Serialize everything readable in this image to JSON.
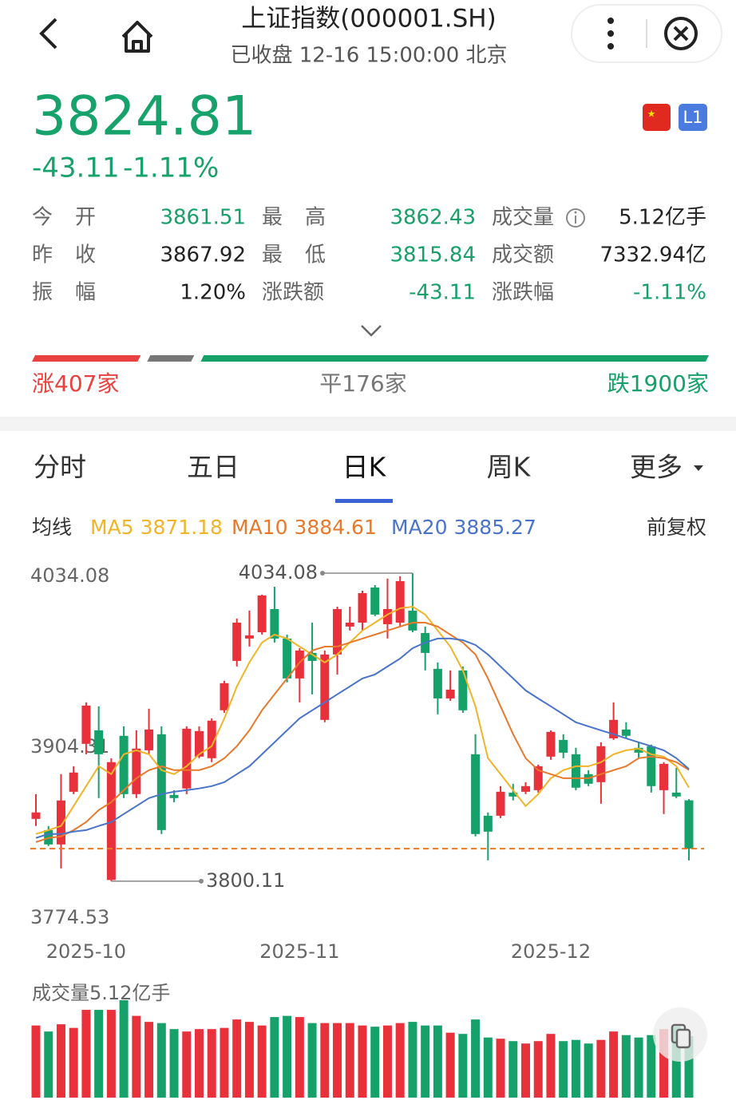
{
  "header": {
    "title": "上证指数(000001.SH)",
    "subtitle": "已收盘 12-16 15:00:00 北京",
    "badge": "L1"
  },
  "quote": {
    "price": "3824.81",
    "change": "-43.11",
    "change_pct": "-1.11%"
  },
  "stats": [
    {
      "label": "今开",
      "value": "3861.51",
      "tone": "down"
    },
    {
      "label": "最高",
      "value": "3862.43",
      "tone": "down"
    },
    {
      "label": "成交量",
      "value": "5.12亿手",
      "tone": "flat"
    },
    {
      "label": "昨收",
      "value": "3867.92",
      "tone": "flat"
    },
    {
      "label": "最低",
      "value": "3815.84",
      "tone": "down"
    },
    {
      "label": "成交额",
      "value": "7332.94亿",
      "tone": "flat"
    },
    {
      "label": "振幅",
      "value": "1.20%",
      "tone": "flat"
    },
    {
      "label": "涨跌额",
      "value": "-43.11",
      "tone": "down"
    },
    {
      "label": "涨跌幅",
      "value": "-1.11%",
      "tone": "down"
    }
  ],
  "breadth": {
    "up": {
      "label": "涨407家",
      "count": 407,
      "color": "#e8413f"
    },
    "flat": {
      "label": "平176家",
      "count": 176,
      "color": "#777777"
    },
    "down": {
      "label": "跌1900家",
      "count": 1900,
      "color": "#16a06a"
    }
  },
  "tabs": [
    "分时",
    "五日",
    "日K",
    "周K",
    "更多"
  ],
  "active_tab": 2,
  "ma_legend": {
    "title": "均线",
    "right": "前复权"
  },
  "chart_data": {
    "type": "candlestick",
    "up_color": "#e8313a",
    "down_color": "#16a06a",
    "categories": [
      null,
      null,
      null,
      null,
      "2025-10",
      null,
      null,
      null,
      null,
      null,
      null,
      null,
      null,
      null,
      null,
      null,
      null,
      null,
      null,
      null,
      null,
      "2025-11",
      null,
      null,
      null,
      null,
      null,
      null,
      null,
      null,
      null,
      null,
      null,
      null,
      null,
      null,
      null,
      null,
      null,
      null,
      null,
      "2025-12",
      null,
      null,
      null,
      null,
      null,
      null,
      null,
      null,
      null,
      null,
      null
    ],
    "open": [
      3847.4,
      3838.9,
      3828.0,
      3868.0,
      3904.4,
      3914.7,
      3801.0,
      3910.5,
      3866.2,
      3899.5,
      3911.7,
      3865.6,
      3870.5,
      3894.7,
      3893.5,
      3929.9,
      3967.4,
      3984.4,
      3989.2,
      4006.8,
      3984.4,
      3954.1,
      3973.5,
      3922.6,
      3972.3,
      3993.5,
      3996.5,
      4023.2,
      3995.3,
      3996.5,
      4005.6,
      3988.6,
      3961.4,
      3938.9,
      3960.2,
      3896.5,
      3849.8,
      3849.8,
      3867.4,
      3868.0,
      3869.2,
      3894.7,
      3907.4,
      3896.5,
      3881.4,
      3875.3,
      3908.6,
      3915.3,
      3901.4,
      3902.6,
      3869.2,
      3867.4,
      3861.51
    ],
    "high": [
      3866.2,
      3842.0,
      3881.4,
      3887.4,
      3935.9,
      3932.9,
      3893.5,
      3917.7,
      3914.7,
      3931.1,
      3917.7,
      3869.2,
      3917.7,
      3917.7,
      3923.8,
      3952.3,
      3999.6,
      4005.6,
      4017.7,
      4023.8,
      3987.4,
      3977.1,
      3996.5,
      3975.3,
      4008.6,
      4008.6,
      4020.8,
      4025.0,
      4029.9,
      4031.7,
      4034.08,
      3993.5,
      3966.2,
      3960.2,
      3963.2,
      3911.7,
      3852.3,
      3872.3,
      3874.1,
      3875.3,
      3888.6,
      3914.7,
      3911.7,
      3901.4,
      3884.4,
      3905.6,
      3935.9,
      3920.8,
      3905.6,
      3903.8,
      3890.5,
      3886.2,
      3862.43
    ],
    "low": [
      3842.0,
      3826.8,
      3809.8,
      3866.2,
      3896.5,
      3863.2,
      3800.11,
      3863.2,
      3863.2,
      3896.5,
      3835.9,
      3860.1,
      3866.2,
      3893.5,
      3890.5,
      3928.0,
      3963.2,
      3978.3,
      3987.4,
      3981.4,
      3951.1,
      3935.9,
      3942.0,
      3920.8,
      3957.1,
      3990.5,
      3990.5,
      4001.4,
      3984.4,
      3993.5,
      3989.2,
      3960.2,
      3926.8,
      3937.1,
      3928.0,
      3834.1,
      3815.9,
      3848.0,
      3861.4,
      3866.2,
      3867.4,
      3892.3,
      3893.5,
      3869.2,
      3872.3,
      3858.9,
      3907.4,
      3908.6,
      3893.5,
      3867.4,
      3851.1,
      3863.2,
      3815.84
    ],
    "close": [
      3852.3,
      3828.0,
      3861.4,
      3882.6,
      3933.5,
      3896.5,
      3890.5,
      3866.2,
      3900.8,
      3915.3,
      3838.9,
      3863.2,
      3915.9,
      3914.1,
      3922.0,
      3950.5,
      3996.5,
      3986.8,
      4017.1,
      3984.4,
      3954.1,
      3975.3,
      3967.4,
      3972.3,
      4006.8,
      3996.5,
      4018.9,
      4002.6,
      4006.8,
      4028.0,
      3990.5,
      3973.5,
      3938.9,
      3945.6,
      3929.9,
      3835.9,
      3837.7,
      3868.0,
      3864.4,
      3872.3,
      3887.4,
      3913.5,
      3897.7,
      3871.1,
      3874.1,
      3902.6,
      3922.6,
      3910.5,
      3897.7,
      3872.3,
      3889.2,
      3864.4,
      3824.81
    ],
    "series": [
      {
        "name": "MA5",
        "color": "#f0b429",
        "last_value": 3871.18,
        "values": [
          3835.9,
          3838.9,
          3842.0,
          3857.1,
          3872.3,
          3887.4,
          3881.4,
          3896.5,
          3899.5,
          3896.5,
          3884.4,
          3881.4,
          3887.4,
          3896.5,
          3902.6,
          3923.8,
          3948.0,
          3966.2,
          3981.4,
          3987.4,
          3984.4,
          3978.3,
          3972.3,
          3966.2,
          3972.3,
          3981.4,
          3990.5,
          3996.5,
          4002.6,
          4007.4,
          4008.6,
          4002.6,
          3990.5,
          3978.3,
          3960.2,
          3932.9,
          3893.5,
          3881.4,
          3869.2,
          3857.1,
          3866.2,
          3878.3,
          3884.4,
          3887.4,
          3887.4,
          3890.5,
          3896.5,
          3899.5,
          3900.8,
          3896.5,
          3894.7,
          3887.4,
          3871.18
        ]
      },
      {
        "name": "MA10",
        "color": "#e8792b",
        "last_value": 3884.61,
        "values": [
          3829.8,
          3832.9,
          3834.1,
          3838.9,
          3845.0,
          3854.1,
          3860.1,
          3869.2,
          3878.3,
          3884.4,
          3887.4,
          3884.4,
          3884.4,
          3884.4,
          3887.4,
          3893.5,
          3902.6,
          3914.7,
          3929.9,
          3942.0,
          3954.1,
          3966.2,
          3975.3,
          3978.3,
          3978.3,
          3981.4,
          3984.4,
          3987.4,
          3990.5,
          3993.5,
          3996.5,
          3996.5,
          3993.5,
          3987.4,
          3981.4,
          3972.3,
          3954.1,
          3932.9,
          3911.7,
          3893.5,
          3884.4,
          3881.4,
          3878.3,
          3878.3,
          3878.3,
          3881.4,
          3884.4,
          3887.4,
          3893.5,
          3894.7,
          3893.5,
          3890.5,
          3884.61
        ]
      },
      {
        "name": "MA20",
        "color": "#4a74c9",
        "last_value": 3885.27,
        "values": [
          3832.9,
          3835.9,
          3835.9,
          3837.7,
          3838.9,
          3842.0,
          3845.0,
          3851.1,
          3857.1,
          3863.2,
          3866.2,
          3868.0,
          3869.2,
          3870.5,
          3872.3,
          3875.3,
          3881.4,
          3887.4,
          3896.5,
          3905.6,
          3914.7,
          3923.8,
          3929.9,
          3935.9,
          3942.0,
          3948.0,
          3954.1,
          3957.1,
          3963.2,
          3969.2,
          3977.1,
          3981.4,
          3984.4,
          3984.4,
          3983.2,
          3979.5,
          3972.3,
          3963.2,
          3954.1,
          3945.0,
          3938.9,
          3932.9,
          3926.8,
          3920.8,
          3917.7,
          3914.7,
          3911.7,
          3908.6,
          3905.6,
          3902.6,
          3899.5,
          3893.5,
          3885.27
        ]
      }
    ],
    "ylim": [
      3774.53,
      4034.08
    ],
    "yticks": [
      4034.08,
      3904.31,
      3774.53
    ],
    "max_value": 4034.08,
    "min_value": 3800.11,
    "volume": {
      "title": "成交量5.12亿手",
      "ylim": [
        0,
        8.3
      ],
      "values": [
        6.0,
        5.5,
        6.1,
        5.8,
        7.3,
        7.3,
        7.3,
        8.1,
        6.8,
        6.3,
        6.2,
        5.7,
        5.5,
        5.7,
        5.7,
        5.8,
        6.5,
        6.3,
        6.0,
        6.7,
        6.8,
        6.7,
        6.2,
        6.2,
        6.2,
        6.2,
        6.0,
        5.9,
        6.0,
        6.2,
        6.3,
        6.0,
        6.0,
        5.4,
        5.3,
        6.5,
        5.0,
        4.9,
        4.7,
        4.5,
        4.7,
        5.3,
        4.7,
        4.8,
        4.5,
        4.8,
        5.5,
        5.2,
        5.0,
        5.2,
        5.7,
        5.9,
        5.12
      ]
    }
  }
}
